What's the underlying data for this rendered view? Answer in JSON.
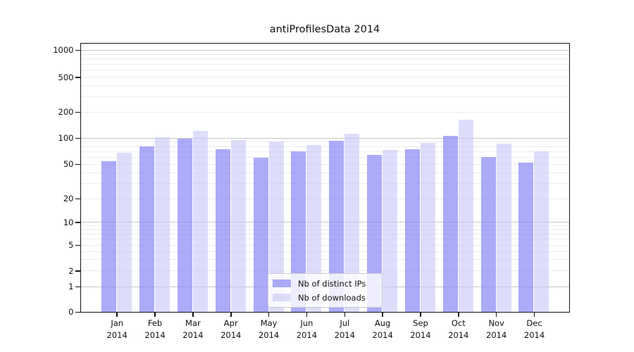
{
  "figure": {
    "title": "antiProfilesData 2014"
  },
  "chart_data": {
    "type": "bar",
    "title": "antiProfilesData 2014",
    "xlabel": "",
    "ylabel": "",
    "categories": [
      "Jan 2014",
      "Feb 2014",
      "Mar 2014",
      "Apr 2014",
      "May 2014",
      "Jun 2014",
      "Jul 2014",
      "Aug 2014",
      "Sep 2014",
      "Oct 2014",
      "Nov 2014",
      "Dec 2014"
    ],
    "series": [
      {
        "name": "Nb of distinct IPs",
        "color": "rgba(135,135,248,0.70)",
        "values": [
          54,
          79,
          97,
          74,
          59,
          70,
          93,
          63,
          74,
          105,
          60,
          52
        ]
      },
      {
        "name": "Nb of downloads",
        "color": "rgba(200,200,248,0.62)",
        "values": [
          67,
          102,
          121,
          95,
          90,
          82,
          111,
          73,
          87,
          162,
          85,
          70
        ]
      }
    ],
    "yscale": "log-like (logarithmic above 1, compressed linear segment 0-1)",
    "yticks": [
      "0",
      "1",
      "2",
      "5",
      "10",
      "20",
      "50",
      "100",
      "200",
      "500",
      "1000"
    ],
    "ylim": [
      0,
      1000
    ],
    "grid": "horizontal major and minor gridlines",
    "legend": {
      "position": "lower center",
      "labels": [
        "Nb of distinct IPs",
        "Nb of downloads"
      ]
    },
    "colors": {
      "bar_distinct_ips": "#aaaaf9",
      "bar_downloads": "#dcdcfa",
      "major_gridline": "#c6c6c6",
      "minor_gridline": "#ececec",
      "axis": "#111111"
    }
  }
}
